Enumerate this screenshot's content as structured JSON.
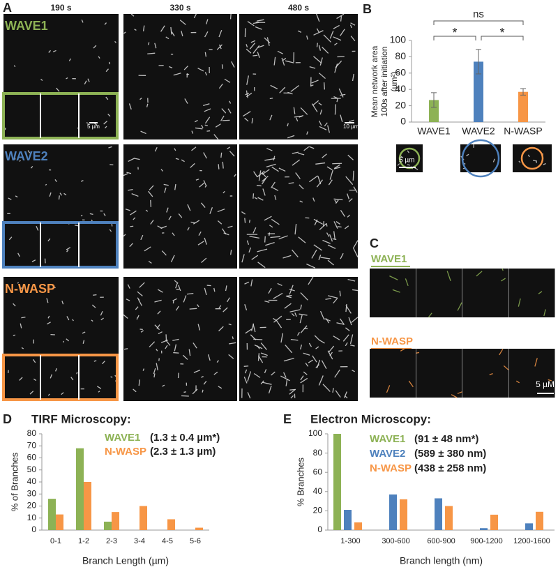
{
  "panel_labels": [
    "A",
    "B",
    "C",
    "D",
    "E"
  ],
  "panel_a": {
    "times": [
      "190 s",
      "330 s",
      "480 s"
    ],
    "rows": [
      "WAVE1",
      "WAVE2",
      "N-WASP"
    ],
    "row_colors": [
      "#8db255",
      "#4e81bd",
      "#f79646"
    ],
    "scale_bars": [
      "5 µm",
      "10 µm"
    ]
  },
  "panel_b_scale_bar": "5 µm",
  "panel_c": {
    "rows": [
      "WAVE1",
      "N-WASP"
    ],
    "row_colors": [
      "#8db255",
      "#f79646"
    ],
    "scale_bar": "5 µM"
  },
  "chart_data": [
    {
      "type": "bar",
      "y_label": [
        "Mean network area",
        "100s after initiation",
        "(µm²)"
      ],
      "categories": [
        "WAVE1",
        "WAVE2",
        "N-WASP"
      ],
      "values": [
        27,
        74,
        37
      ],
      "errors": [
        9,
        15,
        4
      ],
      "colors": [
        "#8db255",
        "#4e81bd",
        "#f79646"
      ],
      "ylim": [
        0,
        100
      ],
      "yticks": [
        0,
        20,
        40,
        60,
        80,
        100
      ],
      "annotations": [
        "*",
        "*",
        "ns"
      ]
    },
    {
      "type": "grouped_bar",
      "title": "TIRF Microscopy:",
      "x_label": "Branch Length (µm)",
      "y_label": "% of Branches",
      "categories": [
        "0-1",
        "1-2",
        "2-3",
        "3-4",
        "4-5",
        "5-6"
      ],
      "series": [
        {
          "name": "WAVE1",
          "stat": "(1.3 ± 0.4 µm*)",
          "color": "#8db255",
          "values": [
            26,
            68,
            7,
            0,
            0,
            0
          ]
        },
        {
          "name": "N-WASP",
          "stat": "(2.3 ± 1.3 µm)",
          "color": "#f79646",
          "values": [
            13,
            40,
            15,
            20,
            9,
            2
          ]
        }
      ],
      "ylim": [
        0,
        80
      ],
      "yticks": [
        0,
        10,
        20,
        30,
        40,
        50,
        60,
        70,
        80
      ]
    },
    {
      "type": "grouped_bar",
      "title": "Electron Microscopy:",
      "x_label": "Branch length (nm)",
      "y_label": "% Branches",
      "categories": [
        "1-300",
        "300-600",
        "600-900",
        "900-1200",
        "1200-1600"
      ],
      "series": [
        {
          "name": "WAVE1",
          "stat": "(91 ± 48 nm*)",
          "color": "#8db255",
          "values": [
            100,
            0,
            0,
            0,
            0
          ]
        },
        {
          "name": "WAVE2",
          "stat": "(589 ± 380 nm)",
          "color": "#4e81bd",
          "values": [
            21,
            37,
            33,
            2,
            7
          ]
        },
        {
          "name": "N-WASP",
          "stat": "(438 ± 258 nm)",
          "color": "#f79646",
          "values": [
            8,
            32,
            25,
            16,
            19
          ]
        }
      ],
      "ylim": [
        0,
        100
      ],
      "yticks": [
        0,
        20,
        40,
        60,
        80,
        100
      ]
    }
  ]
}
